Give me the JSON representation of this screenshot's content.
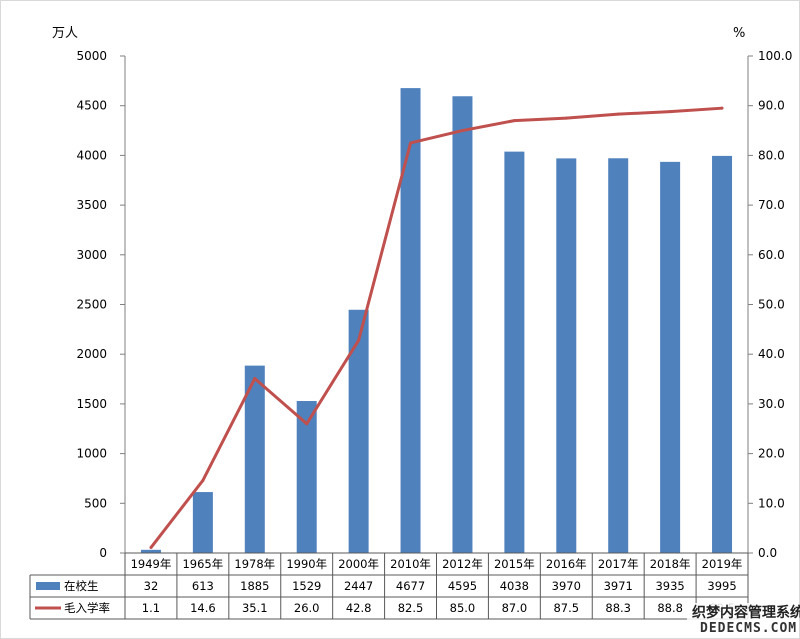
{
  "chart_data": {
    "type": "bar",
    "categories": [
      "1949年",
      "1965年",
      "1978年",
      "1990年",
      "2000年",
      "2010年",
      "2012年",
      "2015年",
      "2016年",
      "2017年",
      "2018年",
      "2019年"
    ],
    "series": [
      {
        "name": "在校生",
        "type": "bar",
        "axis": "left",
        "color": "#4f81bd",
        "values": [
          32,
          613,
          1885,
          1529,
          2447,
          4677,
          4595,
          4038,
          3970,
          3971,
          3935,
          3995
        ],
        "labels": [
          "32",
          "613",
          "1885",
          "1529",
          "2447",
          "4677",
          "4595",
          "4038",
          "3970",
          "3971",
          "3935",
          "3995"
        ]
      },
      {
        "name": "毛入学率",
        "type": "line",
        "axis": "right",
        "color": "#c0504d",
        "values": [
          1.1,
          14.6,
          35.1,
          26.0,
          42.8,
          82.5,
          85.0,
          87.0,
          87.5,
          88.3,
          88.8,
          89.5
        ],
        "labels": [
          "1.1",
          "14.6",
          "35.1",
          "26.0",
          "42.8",
          "82.5",
          "85.0",
          "87.0",
          "87.5",
          "88.3",
          "88.8",
          "89.5"
        ]
      }
    ],
    "y_left": {
      "unit": "万人",
      "min": 0,
      "max": 5000,
      "step": 500,
      "ticks": [
        "0",
        "500",
        "1000",
        "1500",
        "2000",
        "2500",
        "3000",
        "3500",
        "4000",
        "4500",
        "5000"
      ]
    },
    "y_right": {
      "unit": "%",
      "min": 0,
      "max": 100,
      "step": 10,
      "ticks": [
        "0.0",
        "10.0",
        "20.0",
        "30.0",
        "40.0",
        "50.0",
        "60.0",
        "70.0",
        "80.0",
        "90.0",
        "100.0"
      ]
    },
    "data_table": true,
    "grid": false
  },
  "watermark": {
    "line1": "织梦内容管理系统",
    "line2": "DEDECMS.COM"
  }
}
